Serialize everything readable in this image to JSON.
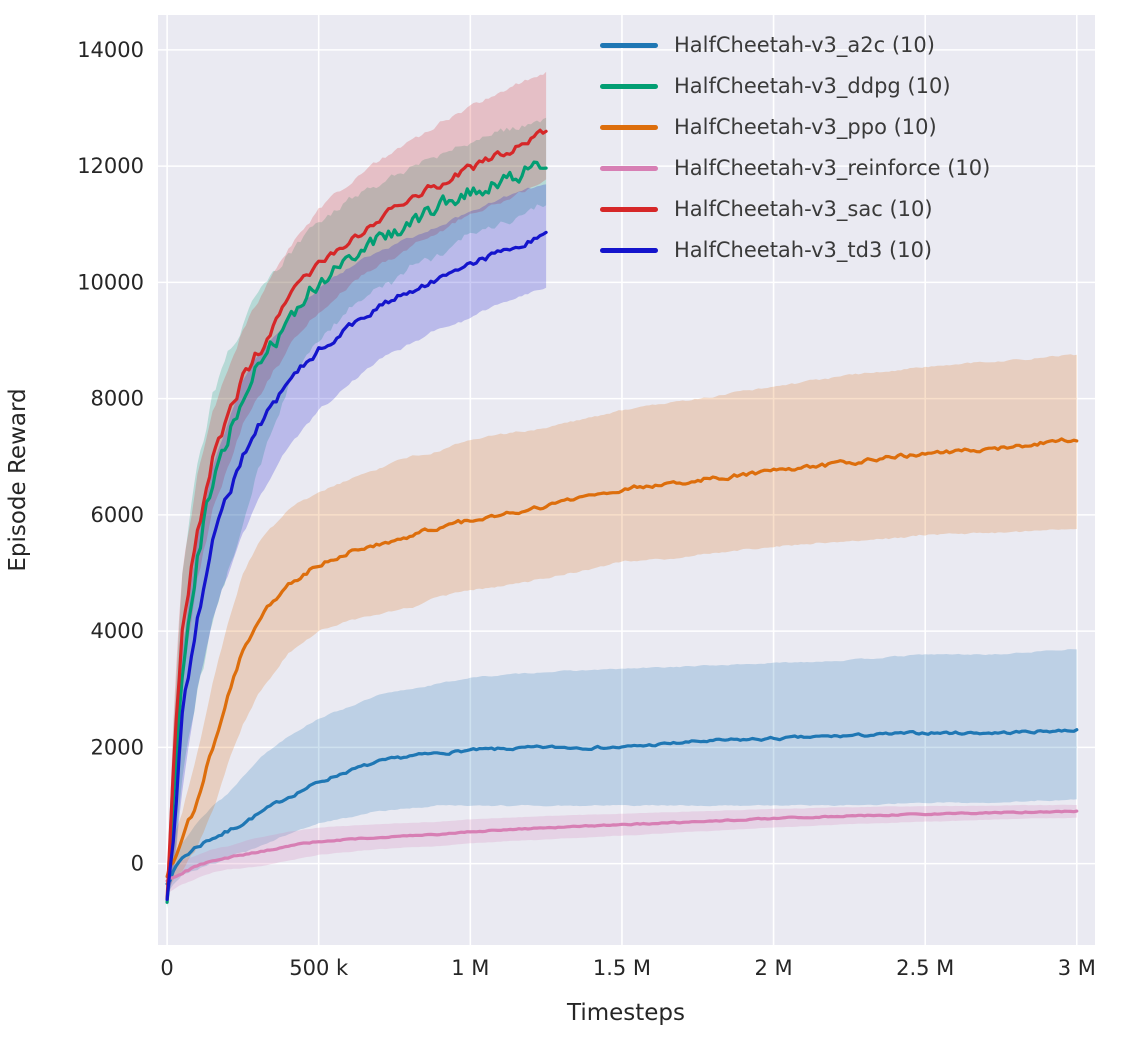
{
  "chart_data": {
    "type": "line",
    "title": "",
    "xlabel": "Timesteps",
    "ylabel": "Episode Reward",
    "xlim": [
      -30000,
      3060000
    ],
    "ylim": [
      -1400,
      14600
    ],
    "grid": true,
    "legend_position": "upper right inside plot",
    "plot_background": "#eaeaf2",
    "grid_color": "#ffffff",
    "tick_label_color": "#262626",
    "x_ticks": [
      {
        "v": 0,
        "label": "0"
      },
      {
        "v": 500000,
        "label": "500 k"
      },
      {
        "v": 1000000,
        "label": "1 M"
      },
      {
        "v": 1500000,
        "label": "1.5 M"
      },
      {
        "v": 2000000,
        "label": "2 M"
      },
      {
        "v": 2500000,
        "label": "2.5 M"
      },
      {
        "v": 3000000,
        "label": "3 M"
      }
    ],
    "y_ticks": [
      {
        "v": 0,
        "label": "0"
      },
      {
        "v": 2000,
        "label": "2000"
      },
      {
        "v": 4000,
        "label": "4000"
      },
      {
        "v": 6000,
        "label": "6000"
      },
      {
        "v": 8000,
        "label": "8000"
      },
      {
        "v": 10000,
        "label": "10000"
      },
      {
        "v": 12000,
        "label": "12000"
      },
      {
        "v": 14000,
        "label": "14000"
      }
    ],
    "series": [
      {
        "label": "HalfCheetah-v3_a2c (10)",
        "color": "#1f77b4",
        "noise": 45,
        "x": [
          0,
          50000,
          100000,
          150000,
          200000,
          250000,
          300000,
          400000,
          500000,
          600000,
          700000,
          800000,
          900000,
          1000000,
          1250000,
          1500000,
          1750000,
          2000000,
          2250000,
          2500000,
          2750000,
          3000000
        ],
        "mean": [
          -300,
          100,
          300,
          450,
          550,
          700,
          850,
          1150,
          1400,
          1600,
          1750,
          1850,
          1900,
          1950,
          2000,
          2000,
          2100,
          2150,
          2200,
          2250,
          2250,
          2300
        ],
        "lo": [
          -500,
          -200,
          -100,
          0,
          100,
          200,
          300,
          500,
          700,
          800,
          900,
          950,
          1000,
          1000,
          1000,
          1000,
          1000,
          1000,
          1000,
          1050,
          1050,
          1100
        ],
        "hi": [
          -100,
          400,
          700,
          1000,
          1200,
          1500,
          1800,
          2200,
          2500,
          2700,
          2900,
          3000,
          3100,
          3200,
          3300,
          3350,
          3400,
          3450,
          3500,
          3600,
          3600,
          3700
        ]
      },
      {
        "label": "HalfCheetah-v3_ddpg (10)",
        "color": "#029e73",
        "noise": 260,
        "x": [
          0,
          25000,
          50000,
          100000,
          150000,
          200000,
          250000,
          300000,
          400000,
          500000,
          600000,
          700000,
          800000,
          900000,
          1000000,
          1100000,
          1250000
        ],
        "mean": [
          -500,
          1500,
          3500,
          5500,
          6700,
          7300,
          7900,
          8500,
          9400,
          10000,
          10400,
          10750,
          11050,
          11300,
          11550,
          11750,
          12050
        ],
        "lo": [
          -700,
          200,
          1500,
          3000,
          4200,
          5000,
          5800,
          6800,
          8200,
          9000,
          9500,
          9900,
          10250,
          10500,
          10800,
          11000,
          11350
        ],
        "hi": [
          -300,
          2800,
          5000,
          6800,
          8000,
          8700,
          9300,
          9800,
          10500,
          11000,
          11400,
          11700,
          11950,
          12200,
          12400,
          12600,
          12800
        ]
      },
      {
        "label": "HalfCheetah-v3_ppo (10)",
        "color": "#dd6e0c",
        "noise": 70,
        "x": [
          0,
          50000,
          100000,
          150000,
          200000,
          250000,
          300000,
          400000,
          500000,
          600000,
          700000,
          800000,
          900000,
          1000000,
          1250000,
          1500000,
          1750000,
          2000000,
          2250000,
          2500000,
          2750000,
          3000000
        ],
        "mean": [
          -200,
          400,
          1100,
          2000,
          2900,
          3700,
          4200,
          4800,
          5150,
          5350,
          5500,
          5650,
          5800,
          5900,
          6150,
          6450,
          6600,
          6750,
          6900,
          7050,
          7150,
          7300
        ],
        "lo": [
          -400,
          -100,
          300,
          900,
          1700,
          2400,
          2900,
          3600,
          4000,
          4200,
          4300,
          4400,
          4600,
          4700,
          4900,
          5200,
          5300,
          5450,
          5550,
          5650,
          5700,
          5750
        ],
        "hi": [
          0,
          900,
          1900,
          3100,
          4100,
          5000,
          5500,
          6100,
          6400,
          6600,
          6800,
          7000,
          7100,
          7300,
          7500,
          7800,
          8000,
          8200,
          8400,
          8550,
          8650,
          8750
        ]
      },
      {
        "label": "HalfCheetah-v3_reinforce (10)",
        "color": "#d77fb4",
        "noise": 18,
        "x": [
          0,
          50000,
          100000,
          150000,
          200000,
          250000,
          300000,
          400000,
          500000,
          600000,
          700000,
          800000,
          900000,
          1000000,
          1250000,
          1500000,
          1750000,
          2000000,
          2250000,
          2500000,
          2750000,
          3000000
        ],
        "mean": [
          -300,
          -150,
          -50,
          50,
          100,
          150,
          200,
          300,
          380,
          420,
          450,
          480,
          500,
          550,
          620,
          670,
          720,
          780,
          820,
          850,
          880,
          900
        ],
        "lo": [
          -500,
          -350,
          -250,
          -150,
          -100,
          -80,
          -50,
          50,
          150,
          200,
          250,
          280,
          300,
          350,
          420,
          480,
          550,
          620,
          680,
          720,
          760,
          790
        ],
        "hi": [
          -100,
          50,
          150,
          250,
          300,
          380,
          450,
          550,
          620,
          650,
          680,
          700,
          720,
          760,
          820,
          860,
          900,
          940,
          970,
          990,
          1000,
          1010
        ]
      },
      {
        "label": "HalfCheetah-v3_sac (10)",
        "color": "#d62728",
        "noise": 150,
        "x": [
          0,
          25000,
          50000,
          100000,
          150000,
          200000,
          250000,
          300000,
          400000,
          500000,
          600000,
          700000,
          800000,
          900000,
          1000000,
          1100000,
          1250000
        ],
        "mean": [
          -500,
          2000,
          4000,
          5800,
          6900,
          7600,
          8300,
          8800,
          9700,
          10300,
          10750,
          11100,
          11400,
          11700,
          11950,
          12200,
          12550
        ],
        "lo": [
          -700,
          1000,
          3000,
          4900,
          6100,
          6800,
          7500,
          8000,
          8900,
          9500,
          9950,
          10300,
          10600,
          10900,
          11150,
          11400,
          11750
        ],
        "hi": [
          -300,
          3000,
          5000,
          6700,
          7800,
          8500,
          9200,
          9700,
          10600,
          11250,
          11700,
          12100,
          12400,
          12750,
          13000,
          13300,
          13600
        ]
      },
      {
        "label": "HalfCheetah-v3_td3 (10)",
        "color": "#1414cc",
        "noise": 110,
        "x": [
          0,
          25000,
          50000,
          100000,
          150000,
          200000,
          250000,
          300000,
          400000,
          500000,
          600000,
          700000,
          800000,
          900000,
          1000000,
          1100000,
          1250000
        ],
        "mean": [
          -500,
          800,
          2500,
          4300,
          5500,
          6300,
          7000,
          7500,
          8300,
          8850,
          9250,
          9600,
          9850,
          10100,
          10300,
          10550,
          10800
        ],
        "lo": [
          -700,
          0,
          1300,
          3000,
          4200,
          5000,
          5700,
          6300,
          7200,
          7800,
          8250,
          8650,
          8950,
          9200,
          9400,
          9650,
          9900
        ],
        "hi": [
          -300,
          1600,
          3700,
          5600,
          6800,
          7600,
          8300,
          8700,
          9400,
          9900,
          10250,
          10550,
          10750,
          11000,
          11200,
          11450,
          11700
        ]
      }
    ]
  }
}
